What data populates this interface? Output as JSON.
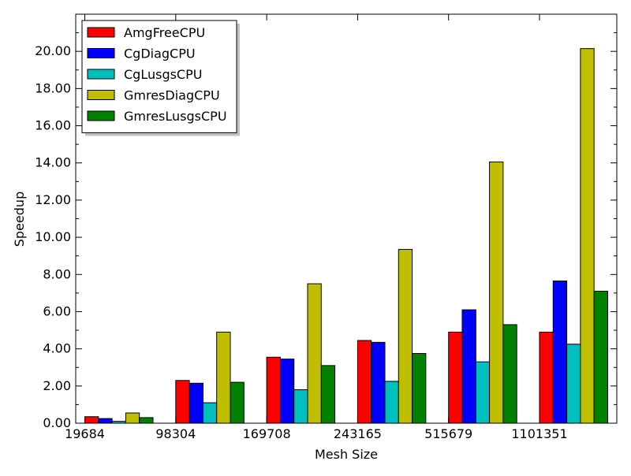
{
  "chart_data": {
    "type": "bar",
    "title": "",
    "xlabel": "Mesh Size",
    "ylabel": "Speedup",
    "categories": [
      "19684",
      "98304",
      "169708",
      "243165",
      "515679",
      "1101351"
    ],
    "ylim": [
      0,
      22
    ],
    "yticks": [
      "0.00",
      "2.00",
      "4.00",
      "6.00",
      "8.00",
      "10.00",
      "12.00",
      "14.00",
      "16.00",
      "18.00",
      "20.00"
    ],
    "series": [
      {
        "name": "AmgFreeCPU",
        "color": "#ff0000",
        "values": [
          0.35,
          2.3,
          3.55,
          4.45,
          4.9,
          4.9
        ]
      },
      {
        "name": "CgDiagCPU",
        "color": "#0000ff",
        "values": [
          0.25,
          2.15,
          3.45,
          4.35,
          6.1,
          7.65
        ]
      },
      {
        "name": "CgLusgsCPU",
        "color": "#00bfbf",
        "values": [
          0.1,
          1.1,
          1.8,
          2.25,
          3.3,
          4.25
        ]
      },
      {
        "name": "GmresDiagCPU",
        "color": "#bfbf00",
        "values": [
          0.55,
          4.9,
          7.5,
          9.35,
          14.05,
          20.15
        ]
      },
      {
        "name": "GmresLusgsCPU",
        "color": "#008000",
        "values": [
          0.3,
          2.2,
          3.1,
          3.75,
          5.3,
          7.1
        ]
      }
    ],
    "legend_position": "upper-left",
    "grid": false
  }
}
